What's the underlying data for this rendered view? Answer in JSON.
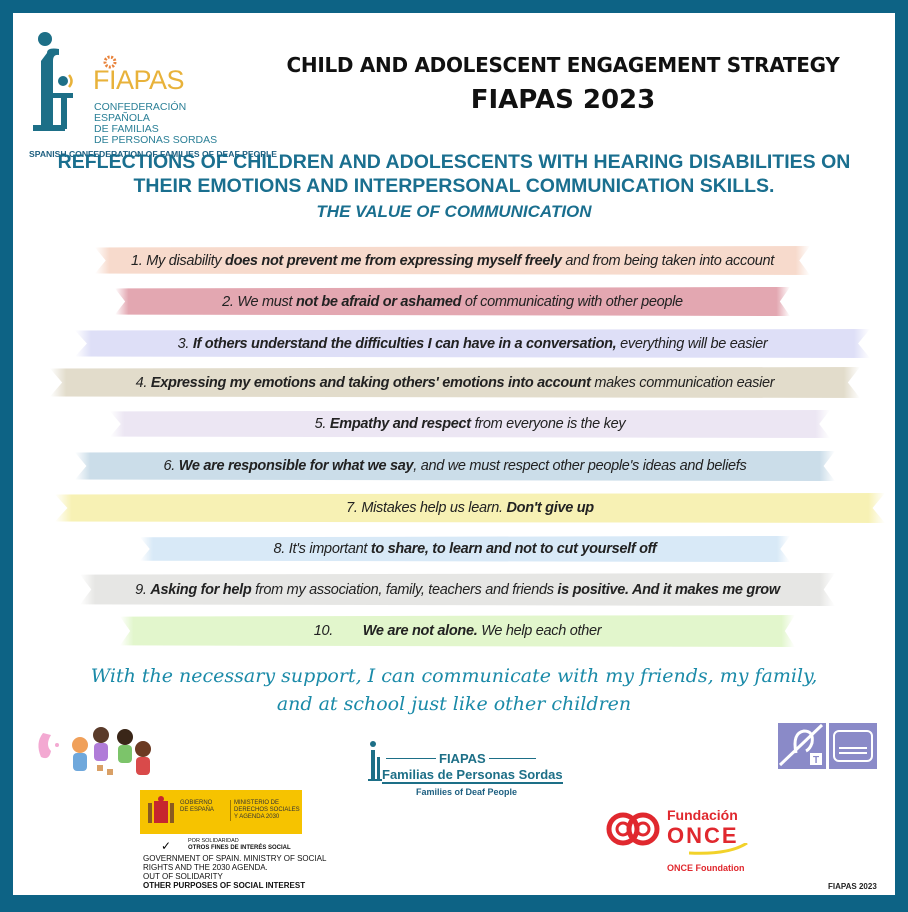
{
  "logo": {
    "name": "FIAPAS",
    "lines": [
      "CONFEDERACIÓN",
      "ESPAÑOLA",
      "DE FAMILIAS",
      "DE PERSONAS SORDAS"
    ],
    "english": "SPANISH CONFEDERATION OF FAMILIES OF DEAF PEOPLE"
  },
  "header": {
    "title": "CHILD AND ADOLESCENT ENGAGEMENT STRATEGY",
    "subtitle": "FIAPAS 2023"
  },
  "heading": {
    "line1": "REFLECTIONS OF CHILDREN AND ADOLESCENTS WITH HEARING DISABILITIES ON",
    "line2": "THEIR EMOTIONS AND INTERPERSONAL COMMUNICATION SKILLS.",
    "line3": "THE VALUE OF COMMUNICATION"
  },
  "items": [
    {
      "color": "#f7dacc",
      "pre": "1. My disability ",
      "bold": "does not prevent me from expressing myself freely",
      "post": " and from being taken into account"
    },
    {
      "color": "#e3a7b1",
      "pre": "2. We must ",
      "bold": "not be afraid or ashamed",
      "post": " of communicating with other people"
    },
    {
      "color": "#dedff7",
      "pre": "3. ",
      "bold": "If others understand the difficulties I can have in a conversation,",
      "post": " everything will be easier"
    },
    {
      "color": "#e2dccb",
      "pre": "4. ",
      "bold": "Expressing my emotions and taking others' emotions into account",
      "post": " makes communication easier"
    },
    {
      "color": "#ece6f3",
      "pre": "5. ",
      "bold": "Empathy and respect",
      "post": " from everyone is the key"
    },
    {
      "color": "#cbdde9",
      "pre": "6. ",
      "bold": "We are responsible for what we say",
      "post": ", and we must respect other people's ideas and beliefs"
    },
    {
      "color": "#f7f1b4",
      "pre": "7. Mistakes help us learn. ",
      "bold": "Don't give up",
      "post": ""
    },
    {
      "color": "#d8e9f7",
      "pre": "8. It's important ",
      "bold": "to share, to learn and not to cut yourself off",
      "post": ""
    },
    {
      "color": "#e6e6e4",
      "pre": "9. ",
      "bold": "Asking for help",
      "post": " from my association, family, teachers and friends ",
      "bold2": "is positive. And it makes me grow"
    },
    {
      "color": "#e2f6cc",
      "pre": "10.        ",
      "bold": "We are not alone.",
      "post": " We help each other"
    }
  ],
  "closing": {
    "line1": "With the necessary support, I can communicate with my friends, my family,",
    "line2": "and at school just like other children"
  },
  "footer": {
    "fiapas_name": "FIAPAS",
    "fiapas_tagline": "Familias de Personas Sordas",
    "fiapas_english": "Families of Deaf People",
    "gov_left": "GOBIERNO DE ESPAÑA",
    "gov_right": "MINISTERIO DE DERECHOS SOCIALES Y AGENDA 2030",
    "solidarity": "POR SOLIDARIDAD",
    "solidarity_bold": "OTROS FINES DE INTERÉS SOCIAL",
    "gov_english": [
      "GOVERNMENT OF SPAIN. MINISTRY OF SOCIAL",
      "RIGHTS AND THE 2030 AGENDA.",
      "OUT OF SOLIDARITY"
    ],
    "gov_english_bold": "OTHER PURPOSES OF SOCIAL INTEREST",
    "once_top": "Fundación",
    "once_main": "ONCE",
    "once_english": "ONCE Foundation",
    "credit": "FIAPAS 2023",
    "accessibility_icons": [
      "hearing-loop-icon",
      "subtitles-icon"
    ]
  },
  "colors": {
    "border": "#0d6385",
    "teal": "#1a6f8f",
    "gold": "#e8b23a",
    "once_red": "#e0282e",
    "gov_yellow": "#f6c300",
    "access_purple": "#8a8ac8"
  }
}
